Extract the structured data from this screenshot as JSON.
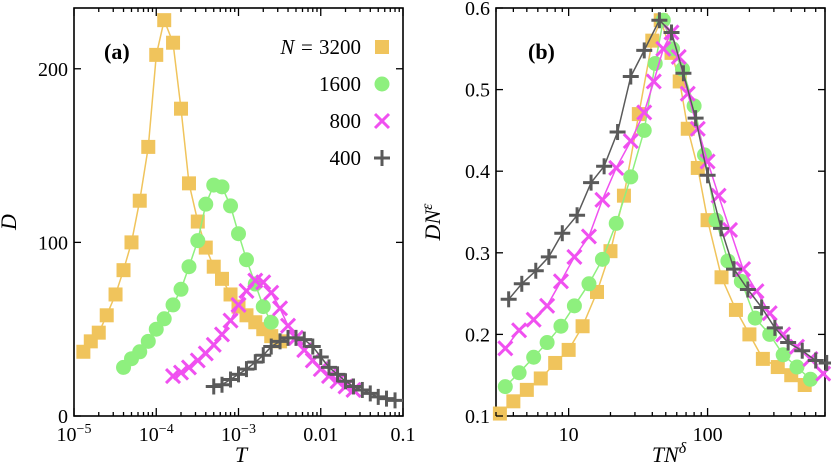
{
  "colors": {
    "n3200": "#f0c45c",
    "n1600": "#8ef07e",
    "n800": "#f050f0",
    "n400": "#5a5a5a"
  },
  "legend": {
    "title_prefix": "N = ",
    "entries": [
      {
        "key": "n3200",
        "label": "3200",
        "marker": "square"
      },
      {
        "key": "n1600",
        "label": "1600",
        "marker": "circle"
      },
      {
        "key": "n800",
        "label": "800",
        "marker": "cross"
      },
      {
        "key": "n400",
        "label": "400",
        "marker": "plus"
      }
    ]
  },
  "chart_data": [
    {
      "type": "scatter",
      "panel_label": "(a)",
      "xlabel": "T",
      "ylabel": "D",
      "xscale": "log",
      "xlim": [
        1e-05,
        0.1
      ],
      "ylim": [
        0,
        235
      ],
      "x_ticks": [
        {
          "value": 1e-05,
          "base": "10",
          "exp": "−5"
        },
        {
          "value": 0.0001,
          "base": "10",
          "exp": "−4"
        },
        {
          "value": 0.001,
          "base": "10",
          "exp": "−3"
        },
        {
          "value": 0.01,
          "base": "0.01",
          "exp": ""
        },
        {
          "value": 0.1,
          "base": "0.1",
          "exp": ""
        }
      ],
      "y_ticks": [
        0,
        100,
        200
      ],
      "series": [
        {
          "name": "3200",
          "key": "n3200",
          "marker": "square",
          "x": [
            1.3e-05,
            1.6e-05,
            2e-05,
            2.5e-05,
            3.2e-05,
            4e-05,
            5e-05,
            6.3e-05,
            8e-05,
            0.0001,
            0.000125,
            0.00016,
            0.0002,
            0.00025,
            0.00032,
            0.0004,
            0.0005,
            0.00063,
            0.0008,
            0.001,
            0.00125,
            0.0016,
            0.002,
            0.0025,
            0.0032
          ],
          "y": [
            37,
            43,
            48,
            58,
            70,
            84,
            100,
            124,
            155,
            208,
            228,
            215,
            177,
            134,
            112,
            97,
            86,
            79,
            70,
            63,
            58,
            54,
            50,
            46,
            43
          ]
        },
        {
          "name": "1600",
          "key": "n1600",
          "marker": "circle",
          "x": [
            4e-05,
            5e-05,
            6.3e-05,
            8e-05,
            0.0001,
            0.000125,
            0.00016,
            0.0002,
            0.00025,
            0.00032,
            0.0004,
            0.0005,
            0.00063,
            0.0008,
            0.001,
            0.00125,
            0.0016,
            0.002,
            0.0025
          ],
          "y": [
            28,
            33,
            37,
            43,
            50,
            56,
            64,
            73,
            86,
            101,
            122,
            133,
            132,
            121,
            105,
            90,
            76,
            63,
            54
          ]
        },
        {
          "name": "800",
          "key": "n800",
          "marker": "cross",
          "x": [
            0.00016,
            0.0002,
            0.00025,
            0.00032,
            0.0004,
            0.0005,
            0.00063,
            0.0008,
            0.001,
            0.00125,
            0.0016,
            0.002,
            0.0025,
            0.0032,
            0.004,
            0.005,
            0.0063,
            0.008,
            0.01,
            0.0126,
            0.016,
            0.02,
            0.025
          ],
          "y": [
            23,
            25,
            28,
            32,
            36,
            41,
            47,
            55,
            64,
            72,
            78,
            77,
            71,
            62,
            52,
            45,
            38,
            32,
            27,
            23,
            20,
            17,
            15
          ]
        },
        {
          "name": "400",
          "key": "n400",
          "marker": "plus",
          "x": [
            0.0005,
            0.00063,
            0.0008,
            0.001,
            0.00125,
            0.0016,
            0.002,
            0.0025,
            0.0032,
            0.004,
            0.005,
            0.0063,
            0.008,
            0.01,
            0.0126,
            0.016,
            0.02,
            0.025,
            0.032,
            0.04,
            0.05,
            0.063,
            0.08
          ],
          "y": [
            17,
            18,
            21,
            24,
            27,
            31,
            35,
            40,
            43,
            45,
            45,
            44,
            40,
            34,
            28,
            24,
            20,
            17,
            15,
            13,
            11,
            10,
            9
          ]
        }
      ]
    },
    {
      "type": "scatter",
      "panel_label": "(b)",
      "xlabel": "TN",
      "xlabel_sup": "δ",
      "ylabel": "DN",
      "ylabel_sup": "ε",
      "xscale": "log",
      "xlim": [
        3,
        700
      ],
      "ylim": [
        0.1,
        0.6
      ],
      "x_ticks": [
        {
          "value": 10,
          "label": "10"
        },
        {
          "value": 100,
          "label": "100"
        }
      ],
      "y_ticks": [
        0.1,
        0.2,
        0.3,
        0.4,
        0.5,
        0.6
      ],
      "y_tick_labels": [
        "0.1",
        "0.2",
        "0.3",
        "0.4",
        "0.5",
        "0.6"
      ],
      "series": [
        {
          "name": "3200",
          "key": "n3200",
          "marker": "square",
          "x": [
            3.2,
            4.0,
            5.0,
            6.3,
            8.0,
            10,
            12.6,
            16,
            20,
            25,
            32,
            40,
            46,
            55,
            63,
            72,
            85,
            100,
            126,
            160,
            200,
            250,
            320,
            400,
            500
          ],
          "y": [
            0.103,
            0.118,
            0.132,
            0.146,
            0.165,
            0.181,
            0.21,
            0.252,
            0.302,
            0.37,
            0.47,
            0.56,
            0.585,
            0.545,
            0.51,
            0.452,
            0.404,
            0.34,
            0.27,
            0.23,
            0.2,
            0.17,
            0.16,
            0.15,
            0.138
          ]
        },
        {
          "name": "1600",
          "key": "n1600",
          "marker": "circle",
          "x": [
            3.5,
            4.4,
            5.6,
            7,
            8.8,
            11,
            14,
            17.5,
            22,
            28,
            35,
            42,
            48,
            56,
            66,
            80,
            95,
            115,
            140,
            175,
            220,
            280,
            350,
            440,
            550
          ],
          "y": [
            0.136,
            0.153,
            0.172,
            0.19,
            0.21,
            0.235,
            0.262,
            0.292,
            0.336,
            0.393,
            0.45,
            0.532,
            0.585,
            0.55,
            0.525,
            0.48,
            0.42,
            0.34,
            0.29,
            0.265,
            0.22,
            0.2,
            0.175,
            0.16,
            0.145
          ]
        },
        {
          "name": "800",
          "key": "n800",
          "marker": "cross",
          "x": [
            3.5,
            4.4,
            5.6,
            7,
            8.8,
            11,
            14,
            17.5,
            22,
            28,
            35,
            41,
            48,
            55,
            62,
            72,
            85,
            100,
            120,
            145,
            180,
            225,
            280,
            350,
            440,
            550,
            680
          ],
          "y": [
            0.183,
            0.205,
            0.218,
            0.235,
            0.265,
            0.295,
            0.32,
            0.365,
            0.404,
            0.437,
            0.472,
            0.51,
            0.55,
            0.57,
            0.54,
            0.495,
            0.452,
            0.412,
            0.37,
            0.328,
            0.28,
            0.253,
            0.226,
            0.2,
            0.185,
            0.17,
            0.152
          ]
        },
        {
          "name": "400",
          "key": "n400",
          "marker": "plus",
          "x": [
            3.7,
            4.6,
            5.8,
            7.2,
            9,
            11.5,
            14.5,
            18,
            22.5,
            28,
            35,
            45,
            55,
            67,
            82,
            100,
            125,
            155,
            195,
            245,
            305,
            380,
            480,
            600,
            720
          ],
          "y": [
            0.243,
            0.262,
            0.278,
            0.295,
            0.324,
            0.346,
            0.386,
            0.406,
            0.448,
            0.516,
            0.548,
            0.585,
            0.57,
            0.52,
            0.465,
            0.395,
            0.33,
            0.28,
            0.255,
            0.233,
            0.208,
            0.19,
            0.18,
            0.168,
            0.165
          ]
        }
      ]
    }
  ]
}
